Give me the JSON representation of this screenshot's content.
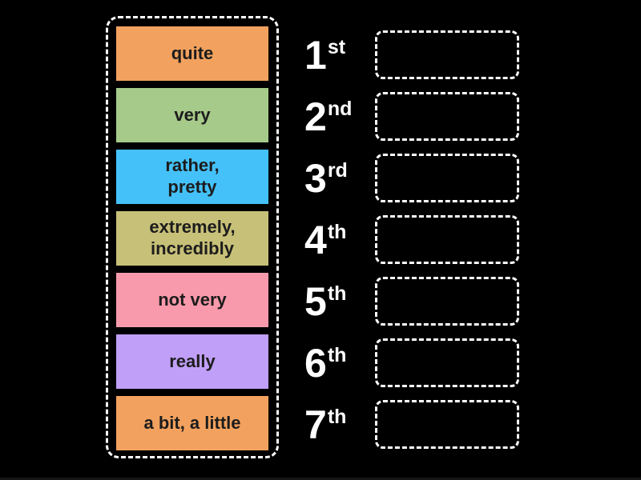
{
  "colors": {
    "background": "#000000",
    "dashed_border": "#ffffff",
    "tile_text": "#1c1c1c",
    "ordinal_text": "#ffffff"
  },
  "tiles": [
    {
      "label": "quite",
      "color": "#f2a25e"
    },
    {
      "label": "very",
      "color": "#a6ca89"
    },
    {
      "label": "rather,\npretty",
      "color": "#44c1f8"
    },
    {
      "label": "extremely,\nincredibly",
      "color": "#c7c078"
    },
    {
      "label": "not very",
      "color": "#f89aab"
    },
    {
      "label": "really",
      "color": "#c09ff8"
    },
    {
      "label": "a bit, a little",
      "color": "#f2a25e"
    }
  ],
  "ordinals": [
    {
      "number": "1",
      "suffix": "st"
    },
    {
      "number": "2",
      "suffix": "nd"
    },
    {
      "number": "3",
      "suffix": "rd"
    },
    {
      "number": "4",
      "suffix": "th"
    },
    {
      "number": "5",
      "suffix": "th"
    },
    {
      "number": "6",
      "suffix": "th"
    },
    {
      "number": "7",
      "suffix": "th"
    }
  ],
  "drop_slots": [
    {
      "value": ""
    },
    {
      "value": ""
    },
    {
      "value": ""
    },
    {
      "value": ""
    },
    {
      "value": ""
    },
    {
      "value": ""
    },
    {
      "value": ""
    }
  ]
}
